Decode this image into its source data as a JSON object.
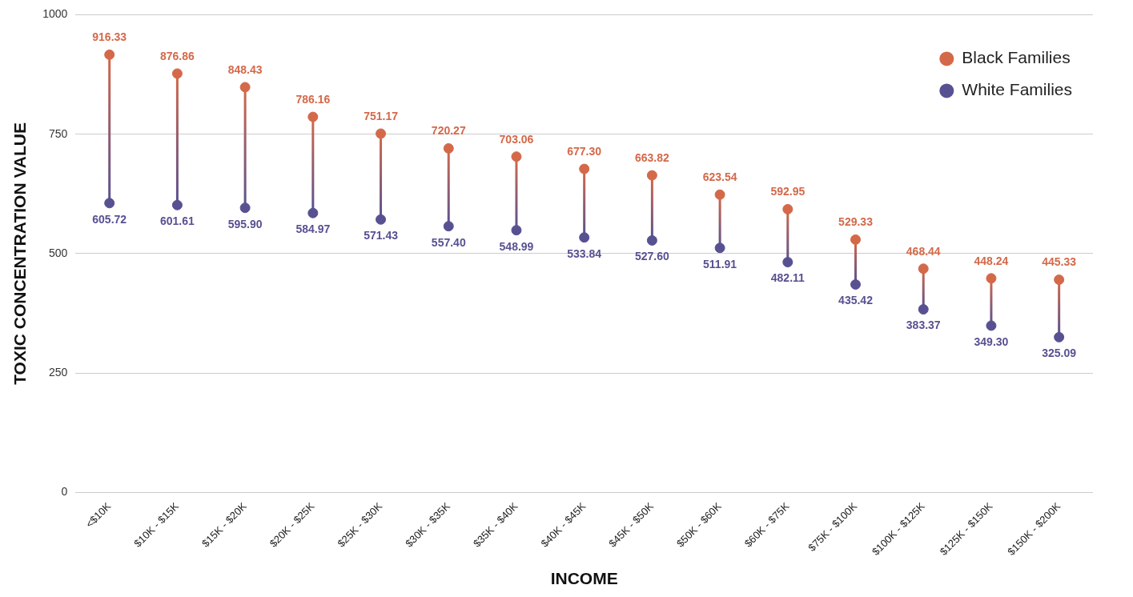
{
  "chart_data": {
    "type": "scatter",
    "xlabel": "INCOME",
    "ylabel": "TOXIC CONCENTRATION VALUE",
    "categories": [
      "<$10K",
      "$10K - $15K",
      "$15K - $20K",
      "$20K - $25K",
      "$25K - $30K",
      "$30K - $35K",
      "$35K - $40K",
      "$40K - $45K",
      "$45K - $50K",
      "$50K - $60K",
      "$60K - $75K",
      "$75K - $100K",
      "$100K - $125K",
      "$125K - $150K",
      "$150K - $200K"
    ],
    "series": [
      {
        "name": "Black Families",
        "color": "#d4694a",
        "values": [
          916.33,
          876.86,
          848.43,
          786.16,
          751.17,
          720.27,
          703.06,
          677.3,
          663.82,
          623.54,
          592.95,
          529.33,
          468.44,
          448.24,
          445.33
        ],
        "value_labels": [
          "916.33",
          "876.86",
          "848.43",
          "786.16",
          "751.17",
          "720.27",
          "703.06",
          "677.30",
          "663.82",
          "623.54",
          "592.95",
          "529.33",
          "468.44",
          "448.24",
          "445.33"
        ]
      },
      {
        "name": "White Families",
        "color": "#575192",
        "values": [
          605.72,
          601.61,
          595.9,
          584.97,
          571.43,
          557.4,
          548.99,
          533.84,
          527.6,
          511.91,
          482.11,
          435.42,
          383.37,
          349.3,
          325.09
        ],
        "value_labels": [
          "605.72",
          "601.61",
          "595.90",
          "584.97",
          "571.43",
          "557.40",
          "548.99",
          "533.84",
          "527.60",
          "511.91",
          "482.11",
          "435.42",
          "383.37",
          "349.30",
          "325.09"
        ]
      }
    ],
    "ylim": [
      0,
      1000
    ],
    "yticks": [
      0,
      250,
      500,
      750,
      1000
    ],
    "grid": "y",
    "legend": "top right",
    "marker": "circle"
  }
}
